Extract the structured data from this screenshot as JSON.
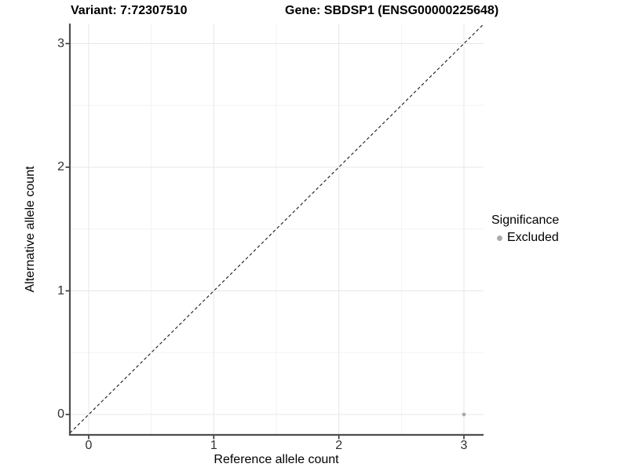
{
  "chart_data": {
    "type": "scatter",
    "title_variant": "Variant: 7:72307510",
    "title_gene": "Gene: SBDSP1 (ENSG00000225648)",
    "xlabel": "Reference allele count",
    "ylabel": "Alternative allele count",
    "xlim": [
      -0.15,
      3.15
    ],
    "ylim": [
      -0.15,
      3.15
    ],
    "x_ticks": [
      0,
      1,
      2,
      3
    ],
    "y_ticks": [
      0,
      1,
      2,
      3
    ],
    "minor_ticks": [
      0.5,
      1.5,
      2.5
    ],
    "grid": "major and minor gridlines on white background",
    "reference_line": {
      "kind": "identity y=x",
      "style": "dashed",
      "color": "#1a1a1a"
    },
    "legend": {
      "title": "Significance",
      "position": "right",
      "entries": [
        {
          "label": "Excluded",
          "color": "#ababab"
        }
      ]
    },
    "series": [
      {
        "name": "Excluded",
        "color": "#ababab",
        "points": [
          {
            "x": 3,
            "y": 0
          }
        ]
      }
    ]
  },
  "colors": {
    "background": "#ffffff",
    "grid_major": "#e7e7e7",
    "grid_minor": "#f3f3f3",
    "axis_line": "#4e4e4e",
    "tick_mark": "#333333",
    "tick_text": "#303030",
    "point": "#ababab"
  }
}
